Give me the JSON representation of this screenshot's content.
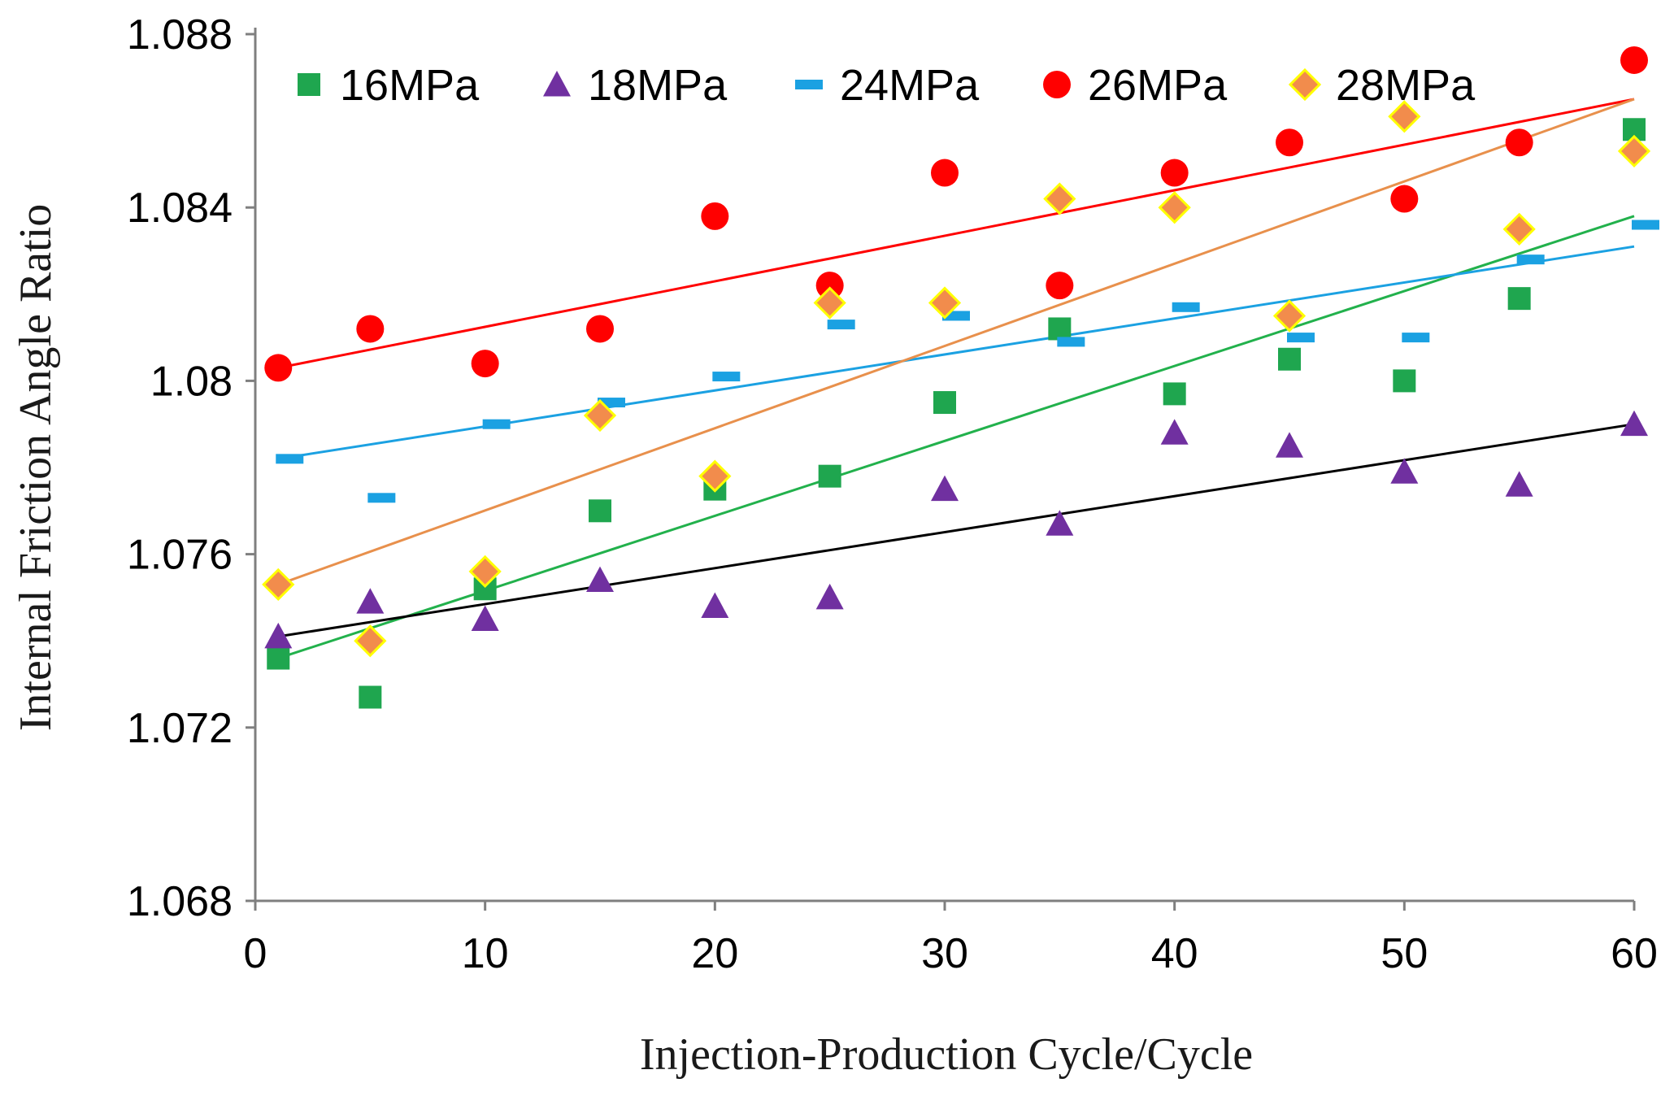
{
  "chart_data": {
    "type": "scatter",
    "title": "",
    "xlabel": "Injection-Production Cycle/Cycle",
    "ylabel": "Internal Friction Angle Ratio",
    "xlim": [
      0,
      60
    ],
    "ylim": [
      1.068,
      1.088
    ],
    "xticks": [
      0,
      10,
      20,
      30,
      40,
      50,
      60
    ],
    "xtick_labels": [
      "0",
      "10",
      "20",
      "30",
      "40",
      "50",
      "60"
    ],
    "yticks": [
      1.068,
      1.072,
      1.076,
      1.08,
      1.084,
      1.088
    ],
    "ytick_labels": [
      "1.068",
      "1.072",
      "1.076",
      "1.08",
      "1.084",
      "1.088"
    ],
    "grid": false,
    "legend_position": "top",
    "x": [
      1,
      5,
      10,
      15,
      20,
      25,
      30,
      35,
      40,
      45,
      50,
      55,
      60
    ],
    "series": [
      {
        "name": "16MPa",
        "marker": "square",
        "color": "#1fa64f",
        "trend_color": "#22b14c",
        "values": [
          1.0736,
          1.0727,
          1.0752,
          1.077,
          1.0775,
          1.0778,
          1.0795,
          1.0812,
          1.0797,
          1.0805,
          1.08,
          1.0819,
          1.0858
        ],
        "trend": [
          1.0736,
          1.0838
        ]
      },
      {
        "name": "18MPa",
        "marker": "triangle",
        "color": "#7030a0",
        "trend_color": "#000000",
        "values": [
          1.0741,
          1.0749,
          1.0745,
          1.0754,
          1.0748,
          1.075,
          1.0775,
          1.0767,
          1.0788,
          1.0785,
          1.0779,
          1.0776,
          1.079
        ],
        "trend": [
          1.0741,
          1.079
        ]
      },
      {
        "name": "24MPa",
        "marker": "dash",
        "color": "#1ba1e2",
        "trend_color": "#1ba1e2",
        "values": [
          1.0782,
          1.0773,
          1.079,
          1.0795,
          1.0801,
          1.0813,
          1.0815,
          1.0809,
          1.0817,
          1.081,
          1.081,
          1.0828,
          1.0836
        ],
        "trend": [
          1.0782,
          1.0831
        ]
      },
      {
        "name": "26MPa",
        "marker": "circle",
        "color": "#ff0000",
        "trend_color": "#ff0000",
        "values": [
          1.0803,
          1.0812,
          1.0804,
          1.0812,
          1.0838,
          1.0822,
          1.0848,
          1.0822,
          1.0848,
          1.0855,
          1.0842,
          1.0855,
          1.0874
        ],
        "trend": [
          1.0803,
          1.0865
        ]
      },
      {
        "name": "28MPa",
        "marker": "diamond",
        "color": "#f28c4c",
        "edge_color": "#ffff00",
        "trend_color": "#e8904c",
        "values": [
          1.0753,
          1.074,
          1.0756,
          1.0792,
          1.0778,
          1.0818,
          1.0818,
          1.0842,
          1.084,
          1.0815,
          1.0861,
          1.0835,
          1.0853
        ],
        "trend": [
          1.0753,
          1.0865
        ]
      }
    ]
  }
}
